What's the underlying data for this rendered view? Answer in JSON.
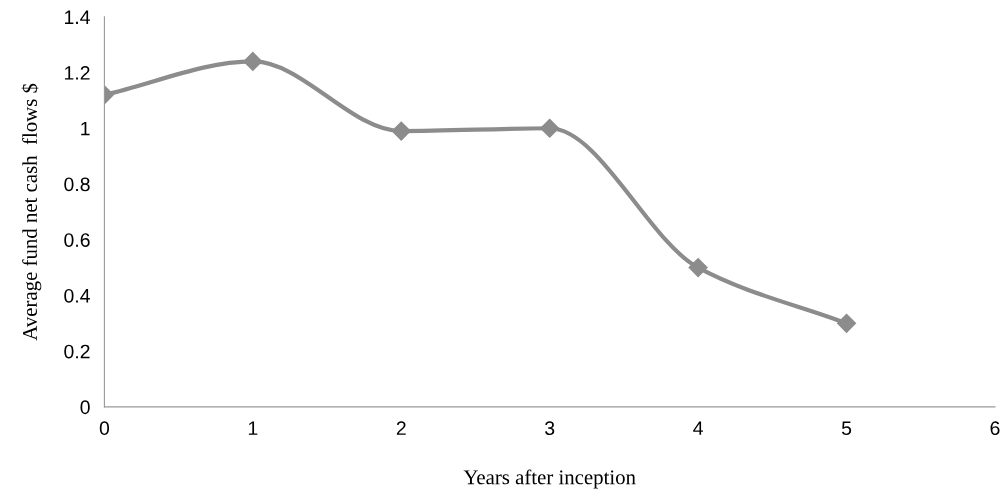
{
  "chart_data": {
    "type": "line",
    "xlabel": "Years after inception",
    "ylabel": "Average fund net cash  flows $",
    "x": [
      0,
      1,
      2,
      3,
      4,
      5
    ],
    "series": [
      {
        "color": "#8c8c8c",
        "values": [
          1.12,
          1.24,
          0.99,
          1.0,
          0.5,
          0.3
        ]
      }
    ],
    "xlim": [
      0,
      6
    ],
    "xticks": [
      0,
      1,
      2,
      3,
      4,
      5,
      6
    ],
    "ylim": [
      0,
      1.4
    ],
    "yticks": [
      0,
      0.2,
      0.4,
      0.6,
      0.8,
      1,
      1.2,
      1.4
    ],
    "marker": "diamond",
    "line_style": "solid",
    "grid": false,
    "legend": false
  }
}
